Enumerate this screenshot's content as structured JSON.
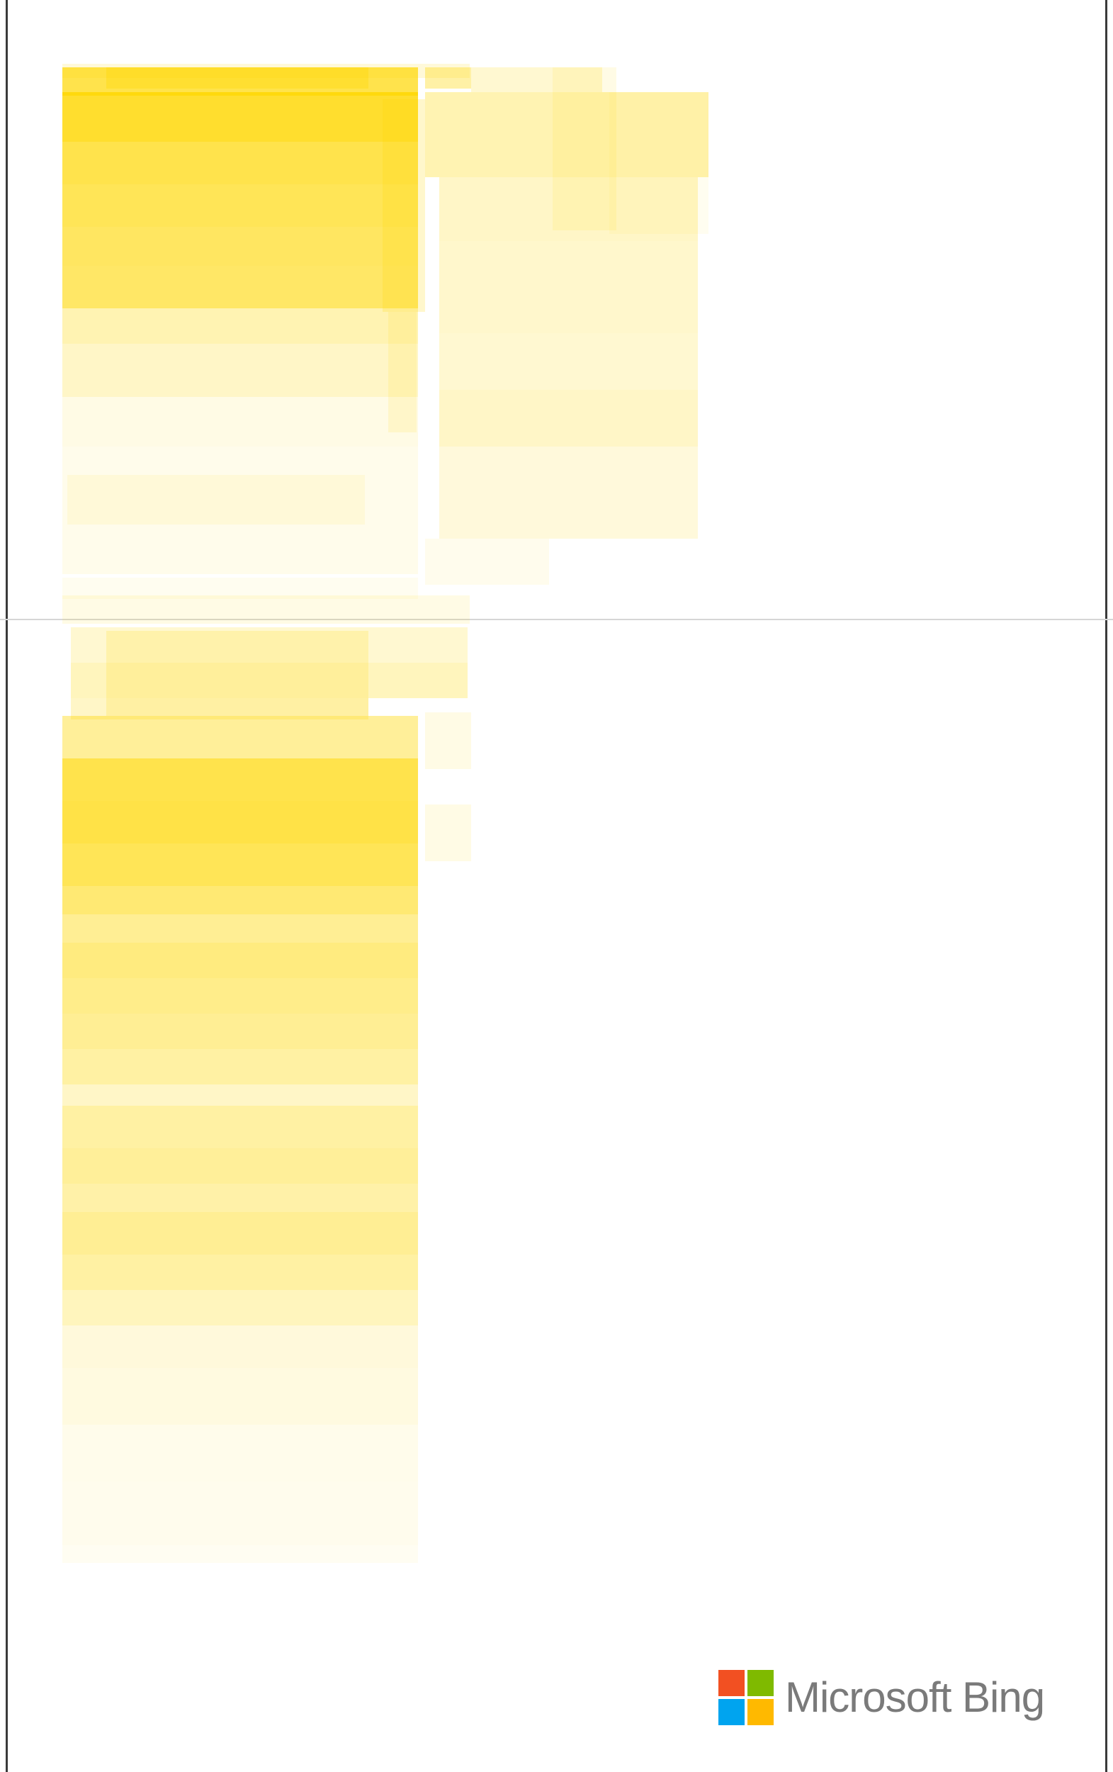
{
  "brand": {
    "label": "Microsoft Bing",
    "logo_colors": [
      "#f25022",
      "#7fba00",
      "#00a4ef",
      "#ffb900"
    ]
  },
  "colors": {
    "heat": "#ffd700",
    "frame": "#3a3a3a",
    "divider": "#d6d6d6",
    "brand_text": "#7a7a7a"
  }
}
